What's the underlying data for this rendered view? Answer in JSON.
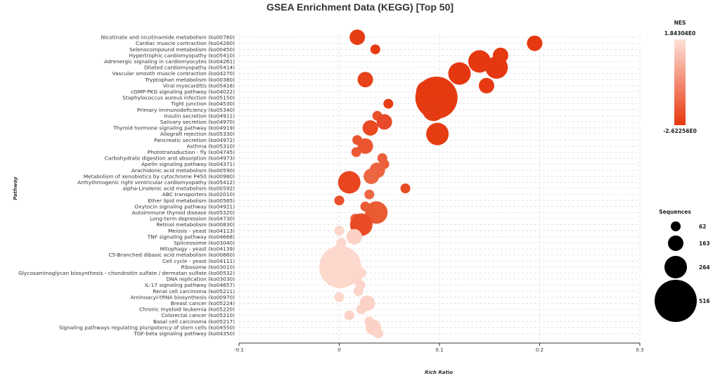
{
  "chart_data": {
    "type": "scatter",
    "title": "GSEA Enrichment Data (KEGG) [Top 50]",
    "xlabel": "Rich Ratio",
    "ylabel": "Pathway",
    "xlim": [
      -0.1,
      0.3
    ],
    "xticks": [
      "-0.1",
      "0",
      "0.1",
      "0.2",
      "0.3"
    ],
    "grid": true,
    "color_legend": {
      "title": "NES",
      "max_label": "1.84304E0",
      "min_label": "-2.62256E0",
      "max_color": "#fde0d9",
      "min_color": "#e8380d",
      "placement": "top-right"
    },
    "size_legend": {
      "title": "Sequences",
      "values": [
        62,
        163,
        264,
        516
      ],
      "labels": [
        "62",
        "163",
        "264",
        "516"
      ],
      "placement": "right"
    },
    "points": [
      {
        "pathway": "Nicotinate and nicotinamide metabolism (ko00760)",
        "x": 0.018,
        "size": 163,
        "color": "#e63d14"
      },
      {
        "pathway": "Cardiac muscle contraction (ko04260)",
        "x": 0.195,
        "size": 163,
        "color": "#e63911"
      },
      {
        "pathway": "Selenocompound metabolism (ko00450)",
        "x": 0.036,
        "size": 62,
        "color": "#e63a12"
      },
      {
        "pathway": "Hypertrophic cardiomyopathy (ko05410)",
        "x": 0.161,
        "size": 163,
        "color": "#e63911"
      },
      {
        "pathway": "Adrenergic signaling in cardiomyocytes (ko04261)",
        "x": 0.14,
        "size": 264,
        "color": "#e53810"
      },
      {
        "pathway": "Dilated cardiomyopathy (ko05414)",
        "x": 0.157,
        "size": 264,
        "color": "#e53810"
      },
      {
        "pathway": "Vascular smooth muscle contraction (ko04270)",
        "x": 0.12,
        "size": 264,
        "color": "#e53810"
      },
      {
        "pathway": "Tryptophan metabolism (ko00380)",
        "x": 0.026,
        "size": 163,
        "color": "#e7421a"
      },
      {
        "pathway": "Viral myocarditis (ko05416)",
        "x": 0.147,
        "size": 163,
        "color": "#e63911"
      },
      {
        "pathway": "cGMP-PKG signaling pathway (ko04022)",
        "x": 0.088,
        "size": 264,
        "color": "#e6390f"
      },
      {
        "pathway": "Staphylococcus aureus infection (ko05150)",
        "x": 0.097,
        "size": 516,
        "color": "#e53a10"
      },
      {
        "pathway": "Tight junction (ko04530)",
        "x": 0.049,
        "size": 62,
        "color": "#e63d13"
      },
      {
        "pathway": "Primary immunodeficiency (ko05340)",
        "x": 0.094,
        "size": 264,
        "color": "#e53b12"
      },
      {
        "pathway": "Insulin secretion (ko04911)",
        "x": 0.038,
        "size": 62,
        "color": "#e9522a"
      },
      {
        "pathway": "Salivary secretion (ko04970)",
        "x": 0.045,
        "size": 163,
        "color": "#e8492a"
      },
      {
        "pathway": "Thyroid hormone signaling pathway (ko04919)",
        "x": 0.031,
        "size": 163,
        "color": "#e94a22"
      },
      {
        "pathway": "Allograft rejection (ko05330)",
        "x": 0.098,
        "size": 264,
        "color": "#e63c12"
      },
      {
        "pathway": "Pancreatic secretion (ko04972)",
        "x": 0.018,
        "size": 62,
        "color": "#ea5531"
      },
      {
        "pathway": "Asthma (ko05310)",
        "x": 0.026,
        "size": 163,
        "color": "#ea542f"
      },
      {
        "pathway": "Phototransduction - fly (ko04745)",
        "x": 0.017,
        "size": 62,
        "color": "#eb5a35"
      },
      {
        "pathway": "Carbohydrate digestion and absorption (ko04973)",
        "x": 0.043,
        "size": 62,
        "color": "#ec603b"
      },
      {
        "pathway": "Apelin signaling pathway (ko04371)",
        "x": 0.045,
        "size": 62,
        "color": "#ec613c"
      },
      {
        "pathway": "Arachidonic acid metabolism (ko00590)",
        "x": 0.038,
        "size": 163,
        "color": "#ec643f"
      },
      {
        "pathway": "Metabolism of xenobiotics by cytochrome P450 (ko00980)",
        "x": 0.032,
        "size": 163,
        "color": "#ec6641"
      },
      {
        "pathway": "Arrhythmogenic right ventricular cardiomyopathy (ko05412)",
        "x": 0.01,
        "size": 264,
        "color": "#e94620"
      },
      {
        "pathway": "alpha-Linolenic acid metabolism (ko00592)",
        "x": 0.066,
        "size": 62,
        "color": "#e84a24"
      },
      {
        "pathway": "ABC transporters (ko02010)",
        "x": 0.03,
        "size": 62,
        "color": "#ec6744"
      },
      {
        "pathway": "Ether lipid metabolism (ko00565)",
        "x": 0.0,
        "size": 62,
        "color": "#e9502b"
      },
      {
        "pathway": "Oxytocin signaling pathway (ko04921)",
        "x": 0.026,
        "size": 62,
        "color": "#eb5b36"
      },
      {
        "pathway": "Autoimmune thyroid disease (ko05320)",
        "x": 0.037,
        "size": 264,
        "color": "#ea5a33"
      },
      {
        "pathway": "Long-term depression (ko04730)",
        "x": 0.016,
        "size": 62,
        "color": "#ed6a46"
      },
      {
        "pathway": "Retinol metabolism (ko00830)",
        "x": 0.022,
        "size": 264,
        "color": "#e94b26"
      },
      {
        "pathway": "Meiosis - yeast (ko04113)",
        "x": 0.0,
        "size": 62,
        "color": "#fdd6cc"
      },
      {
        "pathway": "TNF signaling pathway (ko04668)",
        "x": 0.015,
        "size": 163,
        "color": "#fcd0c4"
      },
      {
        "pathway": "Spliceosome (ko03040)",
        "x": 0.002,
        "size": 62,
        "color": "#fdd7cd"
      },
      {
        "pathway": "Mitophagy - yeast (ko04139)",
        "x": 0.0,
        "size": 62,
        "color": "#fdd8ce"
      },
      {
        "pathway": "C5-Branched dibasic acid metabolism (ko00660)",
        "x": -0.002,
        "size": 62,
        "color": "#fdd9cf"
      },
      {
        "pathway": "Cell cycle - yeast (ko04111)",
        "x": 0.001,
        "size": 62,
        "color": "#fdd9cf"
      },
      {
        "pathway": "Ribosome (ko03010)",
        "x": 0.001,
        "size": 516,
        "color": "#fdd8cd"
      },
      {
        "pathway": "Glycosaminoglycan biosynthesis - chondroitin sulfate / dermatan sulfate (ko00532)",
        "x": 0.022,
        "size": 62,
        "color": "#fcd5ca"
      },
      {
        "pathway": "DNA replication (ko03030)",
        "x": 0.017,
        "size": 62,
        "color": "#fcd5ca"
      },
      {
        "pathway": "IL-17 signaling pathway (ko04657)",
        "x": 0.021,
        "size": 62,
        "color": "#fcd3c8"
      },
      {
        "pathway": "Renal cell carcinoma (ko05211)",
        "x": 0.019,
        "size": 62,
        "color": "#fcd4c9"
      },
      {
        "pathway": "Aminoacyl-tRNA biosynthesis (ko00970)",
        "x": 0.0,
        "size": 62,
        "color": "#fdd7cc"
      },
      {
        "pathway": "Breast cancer (ko05224)",
        "x": 0.028,
        "size": 163,
        "color": "#fcd2c6"
      },
      {
        "pathway": "Chronic myeloid leukemia (ko05220)",
        "x": 0.022,
        "size": 62,
        "color": "#fcd3c8"
      },
      {
        "pathway": "Colorectal cancer (ko05210)",
        "x": 0.01,
        "size": 62,
        "color": "#fcd3c8"
      },
      {
        "pathway": "Basal cell carcinoma (ko05217)",
        "x": 0.03,
        "size": 62,
        "color": "#fcd4c9"
      },
      {
        "pathway": "Signaling pathways regulating pluripotency of stem cells (ko04550)",
        "x": 0.034,
        "size": 163,
        "color": "#fcd1c5"
      },
      {
        "pathway": "TGF-beta signaling pathway (ko04350)",
        "x": 0.039,
        "size": 62,
        "color": "#fcd4c9"
      }
    ]
  }
}
